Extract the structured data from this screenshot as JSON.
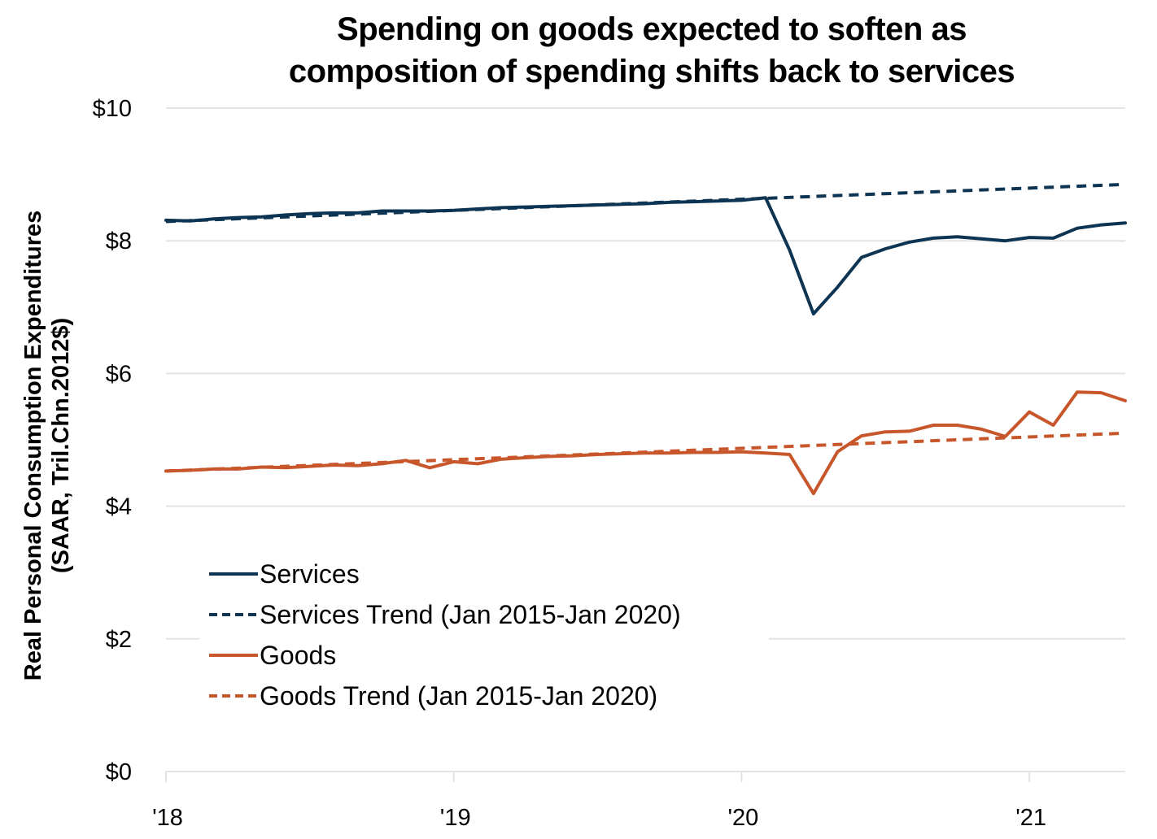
{
  "chart_data": {
    "type": "line",
    "title": [
      "Spending on goods expected to soften as",
      "composition of spending shifts back to services"
    ],
    "xlabel": "",
    "ylabel": [
      "Real Personal Consumption Expenditures",
      "(SAAR, Tril.Chn.2012$)"
    ],
    "ylim": [
      0,
      10
    ],
    "yticks": [
      0,
      2,
      4,
      6,
      8,
      10
    ],
    "ytick_labels": [
      "$0",
      "$2",
      "$4",
      "$6",
      "$8",
      "$10"
    ],
    "x_start": "2018-01",
    "x_frequency": "monthly",
    "xlim_months": [
      0,
      40
    ],
    "xticks_months": [
      0,
      12,
      24,
      36
    ],
    "xtick_labels": [
      "'18",
      "'19",
      "'20",
      "'21"
    ],
    "grid": "horizontal",
    "legend_position": "bottom-left",
    "series": [
      {
        "name": "Services",
        "style": "solid",
        "color": "#0d3553",
        "start_month": 0,
        "values": [
          8.31,
          8.3,
          8.33,
          8.35,
          8.36,
          8.39,
          8.41,
          8.42,
          8.42,
          8.45,
          8.45,
          8.45,
          8.46,
          8.48,
          8.5,
          8.51,
          8.52,
          8.53,
          8.54,
          8.55,
          8.56,
          8.58,
          8.59,
          8.6,
          8.61,
          8.65,
          7.86,
          6.9,
          7.3,
          7.75,
          7.88,
          7.98,
          8.04,
          8.06,
          8.03,
          8.0,
          8.05,
          8.04,
          8.19,
          8.24,
          8.27
        ]
      },
      {
        "name": "Services Trend (Jan 2015-Jan 2020)",
        "style": "dashed",
        "color": "#0d3553",
        "start_month": 0,
        "end_month": 40,
        "start_value": 8.29,
        "end_value": 8.85
      },
      {
        "name": "Goods",
        "style": "solid",
        "color": "#c8562b",
        "start_month": 0,
        "values": [
          4.53,
          4.54,
          4.56,
          4.56,
          4.59,
          4.58,
          4.6,
          4.62,
          4.61,
          4.64,
          4.69,
          4.58,
          4.67,
          4.64,
          4.71,
          4.73,
          4.75,
          4.76,
          4.78,
          4.79,
          4.8,
          4.8,
          4.81,
          4.81,
          4.82,
          4.8,
          4.78,
          4.19,
          4.82,
          5.06,
          5.12,
          5.13,
          5.22,
          5.22,
          5.16,
          5.05,
          5.42,
          5.22,
          5.72,
          5.71,
          5.59
        ]
      },
      {
        "name": "Goods Trend (Jan 2015-Jan 2020)",
        "style": "dashed",
        "color": "#c8562b",
        "start_month": 0,
        "end_month": 40,
        "start_value": 4.53,
        "end_value": 5.1
      }
    ]
  },
  "colors": {
    "services": "#0d3553",
    "goods": "#c8562b",
    "grid": "#e3e3e3"
  }
}
